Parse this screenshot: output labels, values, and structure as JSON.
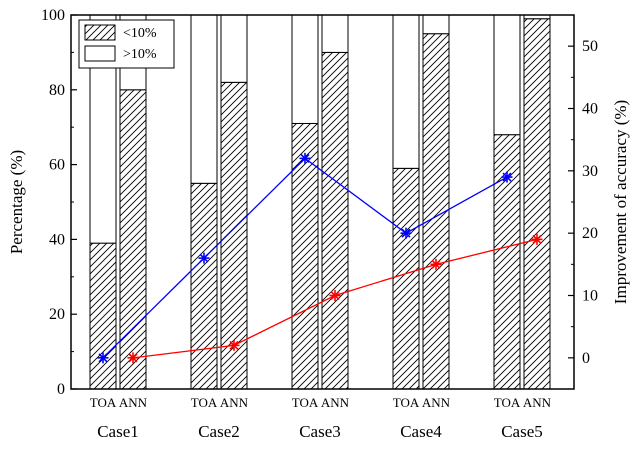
{
  "chart_data": {
    "type": "bar",
    "groups": [
      "Case1",
      "Case2",
      "Case3",
      "Case4",
      "Case5"
    ],
    "bar_labels": [
      "TOA",
      "ANN"
    ],
    "ylabel_left": "Percentage (%)",
    "ylabel_right": "Improvement of accuracy (%)",
    "ylim_left": [
      0,
      100
    ],
    "ylim_right": [
      -5,
      55
    ],
    "yticks_left": [
      "0",
      "20",
      "40",
      "60",
      "80",
      "100"
    ],
    "yticks_right": [
      "0",
      "10",
      "20",
      "30",
      "40",
      "50"
    ],
    "legend": {
      "position": "top-left",
      "items": [
        "<10%",
        ">10%"
      ]
    },
    "stacked_series": [
      {
        "name": "<10%",
        "pattern": "hatched",
        "values": [
          [
            39,
            80
          ],
          [
            55,
            82
          ],
          [
            71,
            90
          ],
          [
            59,
            95
          ],
          [
            68,
            99
          ]
        ]
      },
      {
        "name": ">10%",
        "pattern": "white",
        "values": [
          [
            61,
            20
          ],
          [
            45,
            18
          ],
          [
            29,
            10
          ],
          [
            41,
            5
          ],
          [
            32,
            1
          ]
        ]
      }
    ],
    "line_series": [
      {
        "color": "#0000ff",
        "marker": "asterisk",
        "anchor": "TOA",
        "values": [
          0,
          16,
          32,
          20,
          29
        ]
      },
      {
        "color": "#ff0000",
        "marker": "asterisk",
        "anchor": "ANN",
        "values": [
          0,
          2,
          10,
          15,
          19
        ]
      }
    ]
  }
}
